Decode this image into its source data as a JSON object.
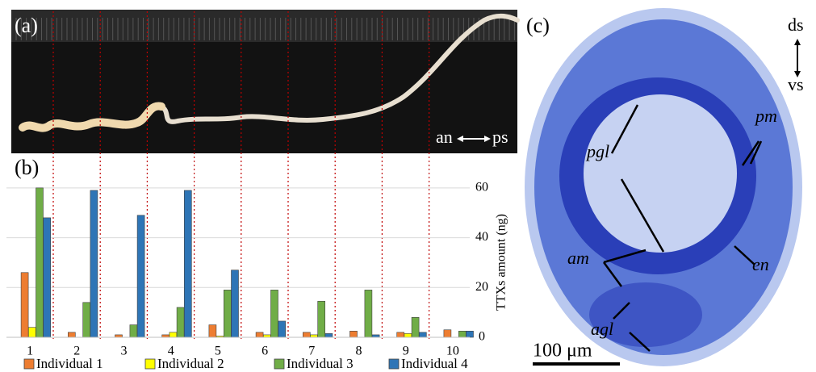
{
  "chart_data": {
    "type": "bar",
    "panel_label": "(b)",
    "y_label": "TTXs amount (ng)",
    "categories": [
      "1",
      "2",
      "3",
      "4",
      "5",
      "6",
      "7",
      "8",
      "9",
      "10"
    ],
    "series": [
      {
        "name": "Individual 1",
        "color": "#ed7d31",
        "values": [
          26,
          2,
          1,
          1,
          5,
          2,
          2,
          2.5,
          2,
          3
        ]
      },
      {
        "name": "Individual 2",
        "color": "#ffff00",
        "values": [
          4,
          0,
          0,
          2,
          0.5,
          1,
          1,
          0,
          1.5,
          0
        ]
      },
      {
        "name": "Individual 3",
        "color": "#70ad47",
        "values": [
          60,
          14,
          5,
          12,
          19,
          19,
          14.5,
          19,
          8,
          2.5
        ]
      },
      {
        "name": "Individual 4",
        "color": "#2e75b6",
        "values": [
          48,
          59,
          49,
          59,
          27,
          6.5,
          1.5,
          1,
          2,
          2.5
        ]
      }
    ],
    "ylim": [
      0,
      70
    ],
    "yticks": [
      0,
      20,
      40,
      60
    ],
    "grid": true
  },
  "photo_a": {
    "panel_label": "(a)",
    "left_end": "an",
    "right_end": "ps"
  },
  "photo_c": {
    "panel_label": "(c)",
    "top_axis": "ds",
    "bottom_axis": "vs",
    "labels": [
      "pgl",
      "pm",
      "am",
      "en",
      "agl"
    ],
    "scale_bar": "100 μm"
  }
}
